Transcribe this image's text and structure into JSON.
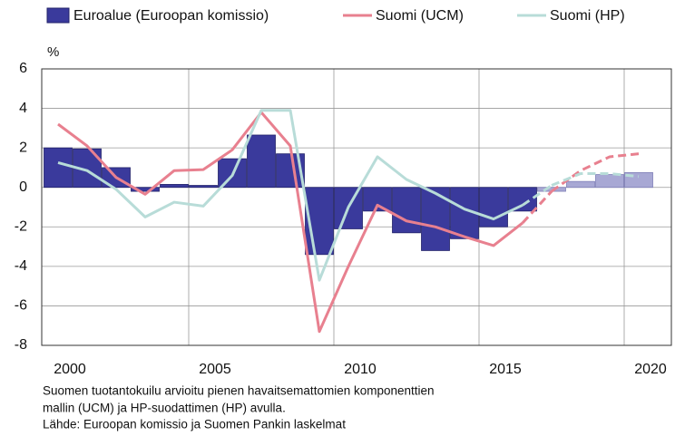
{
  "chart_data": {
    "type": "bar",
    "y_unit_label": "%",
    "categories": [
      "2000",
      null,
      null,
      null,
      null,
      "2005",
      null,
      null,
      null,
      null,
      "2010",
      null,
      null,
      null,
      null,
      "2015",
      null,
      null,
      null,
      null,
      "2020"
    ],
    "forecast_from": 17,
    "series": [
      {
        "name": "Euroalue (Euroopan komissio)",
        "type": "bar",
        "color": "#3a3a9c",
        "forecast_color": "#a8a8d4",
        "values": [
          2.0,
          1.95,
          1.0,
          -0.2,
          0.15,
          0.1,
          1.45,
          2.65,
          1.7,
          -3.4,
          -2.1,
          -1.2,
          -2.3,
          -3.2,
          -2.6,
          -2.0,
          -1.2,
          -0.2,
          0.3,
          0.65,
          0.75
        ]
      },
      {
        "name": "Suomi (UCM)",
        "type": "line",
        "color": "#e8808f",
        "values": [
          3.2,
          2.1,
          0.5,
          -0.35,
          0.85,
          0.9,
          1.9,
          3.8,
          2.1,
          -7.3,
          -4.0,
          -0.9,
          -1.7,
          -2.0,
          -2.5,
          -2.95,
          -1.8,
          -0.2,
          0.85,
          1.55,
          1.7
        ]
      },
      {
        "name": "Suomi (HP)",
        "type": "line",
        "color": "#b8dcd8",
        "values": [
          1.25,
          0.85,
          -0.1,
          -1.5,
          -0.75,
          -0.95,
          0.6,
          3.9,
          3.9,
          -4.7,
          -1.0,
          1.55,
          0.4,
          -0.3,
          -1.1,
          -1.6,
          -0.9,
          0.1,
          0.7,
          0.7,
          0.55
        ]
      }
    ],
    "ylim": [
      -8,
      6
    ],
    "yticks": [
      -8,
      -6,
      -4,
      -2,
      0,
      2,
      4,
      6
    ],
    "grid": true,
    "notes": [
      "Suomen tuotantokuilu arvioitu pienen havaitsemattomien komponenttien",
      "mallin (UCM) ja HP-suodattimen (HP) avulla.",
      "Lähde: Euroopan komissio ja Suomen Pankin laskelmat"
    ]
  }
}
